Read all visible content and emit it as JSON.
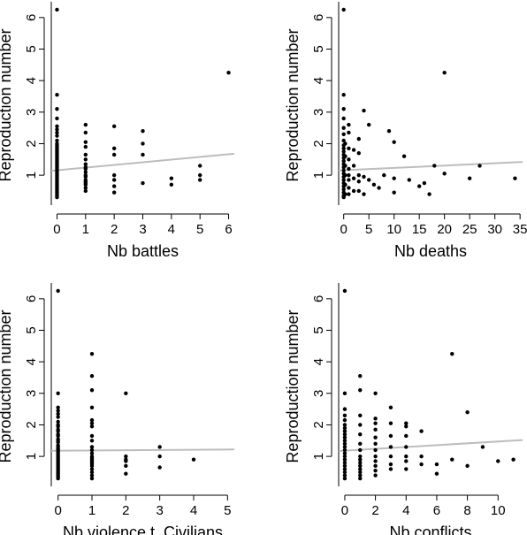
{
  "chart_data": [
    {
      "type": "scatter",
      "xlabel": "Nb battles",
      "ylabel": "Reproduction number",
      "xlim": [
        -0.2,
        6.2
      ],
      "ylim": [
        0.05,
        6.5
      ],
      "xticks": [
        0,
        1,
        2,
        3,
        4,
        5,
        6
      ],
      "yticks": [
        1,
        2,
        3,
        4,
        5,
        6
      ],
      "trend": {
        "x0": -0.2,
        "y0": 1.14,
        "x1": 6.2,
        "y1": 1.68
      },
      "points": [
        [
          0,
          6.25
        ],
        [
          0,
          3.55
        ],
        [
          0,
          3.1
        ],
        [
          0,
          2.8
        ],
        [
          0,
          2.55
        ],
        [
          0,
          2.45
        ],
        [
          0,
          2.35
        ],
        [
          0,
          2.25
        ],
        [
          0,
          2.1
        ],
        [
          0,
          2.0
        ],
        [
          0,
          1.95
        ],
        [
          0,
          1.9
        ],
        [
          0,
          1.85
        ],
        [
          0,
          1.8
        ],
        [
          0,
          1.75
        ],
        [
          0,
          1.7
        ],
        [
          0,
          1.65
        ],
        [
          0,
          1.6
        ],
        [
          0,
          1.55
        ],
        [
          0,
          1.5
        ],
        [
          0,
          1.45
        ],
        [
          0,
          1.4
        ],
        [
          0,
          1.35
        ],
        [
          0,
          1.3
        ],
        [
          0,
          1.25
        ],
        [
          0,
          1.2
        ],
        [
          0,
          1.15
        ],
        [
          0,
          1.1
        ],
        [
          0,
          1.05
        ],
        [
          0,
          1.0
        ],
        [
          0,
          0.95
        ],
        [
          0,
          0.9
        ],
        [
          0,
          0.85
        ],
        [
          0,
          0.8
        ],
        [
          0,
          0.75
        ],
        [
          0,
          0.7
        ],
        [
          0,
          0.65
        ],
        [
          0,
          0.6
        ],
        [
          0,
          0.55
        ],
        [
          0,
          0.5
        ],
        [
          0,
          0.45
        ],
        [
          0,
          0.4
        ],
        [
          0,
          0.35
        ],
        [
          0,
          0.3
        ],
        [
          1,
          2.6
        ],
        [
          1,
          2.35
        ],
        [
          1,
          2.05
        ],
        [
          1,
          1.9
        ],
        [
          1,
          1.65
        ],
        [
          1,
          1.5
        ],
        [
          1,
          1.35
        ],
        [
          1,
          1.25
        ],
        [
          1,
          1.2
        ],
        [
          1,
          1.1
        ],
        [
          1,
          1.0
        ],
        [
          1,
          0.95
        ],
        [
          1,
          0.85
        ],
        [
          1,
          0.8
        ],
        [
          1,
          0.75
        ],
        [
          1,
          0.7
        ],
        [
          1,
          0.6
        ],
        [
          1,
          0.5
        ],
        [
          2,
          2.55
        ],
        [
          2,
          1.85
        ],
        [
          2,
          1.65
        ],
        [
          2,
          1.0
        ],
        [
          2,
          0.85
        ],
        [
          2,
          0.65
        ],
        [
          2,
          0.45
        ],
        [
          3,
          2.4
        ],
        [
          3,
          2.0
        ],
        [
          3,
          1.65
        ],
        [
          3,
          0.75
        ],
        [
          4,
          0.9
        ],
        [
          4,
          0.7
        ],
        [
          5,
          1.3
        ],
        [
          5,
          1.0
        ],
        [
          5,
          0.85
        ],
        [
          6,
          4.25
        ]
      ]
    },
    {
      "type": "scatter",
      "xlabel": "Nb deaths",
      "ylabel": "Reproduction number",
      "xlim": [
        -1,
        35.5
      ],
      "ylim": [
        0.05,
        6.5
      ],
      "xticks": [
        0,
        5,
        10,
        15,
        20,
        25,
        30,
        35
      ],
      "yticks": [
        1,
        2,
        3,
        4,
        5,
        6
      ],
      "trend": {
        "x0": -1,
        "y0": 1.15,
        "x1": 35.5,
        "y1": 1.42
      },
      "points": [
        [
          0,
          6.25
        ],
        [
          0,
          3.55
        ],
        [
          0,
          3.1
        ],
        [
          0,
          2.8
        ],
        [
          0,
          2.5
        ],
        [
          0,
          2.3
        ],
        [
          0,
          2.1
        ],
        [
          0,
          1.95
        ],
        [
          0,
          1.85
        ],
        [
          0,
          1.75
        ],
        [
          0,
          1.65
        ],
        [
          0,
          1.55
        ],
        [
          0,
          1.45
        ],
        [
          0,
          1.35
        ],
        [
          0,
          1.25
        ],
        [
          0,
          1.15
        ],
        [
          0,
          1.05
        ],
        [
          0,
          0.95
        ],
        [
          0,
          0.85
        ],
        [
          0,
          0.75
        ],
        [
          0,
          0.65
        ],
        [
          0,
          0.55
        ],
        [
          0,
          0.45
        ],
        [
          0,
          0.35
        ],
        [
          0,
          0.3
        ],
        [
          0.3,
          2.0
        ],
        [
          0.3,
          1.6
        ],
        [
          0.3,
          1.3
        ],
        [
          0.3,
          1.0
        ],
        [
          0.3,
          0.7
        ],
        [
          0.3,
          0.4
        ],
        [
          1,
          2.6
        ],
        [
          1,
          2.35
        ],
        [
          1,
          1.85
        ],
        [
          1,
          1.5
        ],
        [
          1,
          1.2
        ],
        [
          1,
          1.0
        ],
        [
          1,
          0.85
        ],
        [
          1,
          0.6
        ],
        [
          1,
          0.4
        ],
        [
          2,
          1.8
        ],
        [
          2,
          1.3
        ],
        [
          2,
          0.9
        ],
        [
          2,
          0.5
        ],
        [
          3,
          2.15
        ],
        [
          3,
          1.7
        ],
        [
          3,
          1.0
        ],
        [
          3,
          0.8
        ],
        [
          3,
          0.5
        ],
        [
          4,
          3.05
        ],
        [
          4,
          0.95
        ],
        [
          4,
          0.4
        ],
        [
          5,
          2.6
        ],
        [
          5,
          0.85
        ],
        [
          6,
          0.7
        ],
        [
          7,
          0.6
        ],
        [
          8,
          1.0
        ],
        [
          9,
          2.4
        ],
        [
          10,
          2.05
        ],
        [
          10,
          0.9
        ],
        [
          10,
          0.45
        ],
        [
          12,
          1.6
        ],
        [
          13,
          0.85
        ],
        [
          15,
          0.65
        ],
        [
          16,
          0.75
        ],
        [
          17,
          0.4
        ],
        [
          18,
          1.3
        ],
        [
          20,
          4.25
        ],
        [
          20,
          1.05
        ],
        [
          25,
          0.9
        ],
        [
          27,
          1.3
        ],
        [
          34,
          0.9
        ]
      ]
    },
    {
      "type": "scatter",
      "xlabel": "Nb violence t. Civilians",
      "ylabel": "Reproduction number",
      "xlim": [
        -0.2,
        5.2
      ],
      "ylim": [
        0.05,
        6.5
      ],
      "xticks": [
        0,
        1,
        2,
        3,
        4,
        5
      ],
      "yticks": [
        1,
        2,
        3,
        4,
        5,
        6
      ],
      "trend": {
        "x0": -0.2,
        "y0": 1.18,
        "x1": 5.2,
        "y1": 1.22
      },
      "points": [
        [
          0,
          6.25
        ],
        [
          0,
          3.0
        ],
        [
          0,
          2.55
        ],
        [
          0,
          2.45
        ],
        [
          0,
          2.35
        ],
        [
          0,
          2.25
        ],
        [
          0,
          2.1
        ],
        [
          0,
          2.0
        ],
        [
          0,
          1.95
        ],
        [
          0,
          1.85
        ],
        [
          0,
          1.8
        ],
        [
          0,
          1.7
        ],
        [
          0,
          1.65
        ],
        [
          0,
          1.55
        ],
        [
          0,
          1.5
        ],
        [
          0,
          1.45
        ],
        [
          0,
          1.35
        ],
        [
          0,
          1.3
        ],
        [
          0,
          1.25
        ],
        [
          0,
          1.2
        ],
        [
          0,
          1.15
        ],
        [
          0,
          1.1
        ],
        [
          0,
          1.05
        ],
        [
          0,
          1.0
        ],
        [
          0,
          0.95
        ],
        [
          0,
          0.9
        ],
        [
          0,
          0.85
        ],
        [
          0,
          0.8
        ],
        [
          0,
          0.75
        ],
        [
          0,
          0.7
        ],
        [
          0,
          0.65
        ],
        [
          0,
          0.6
        ],
        [
          0,
          0.55
        ],
        [
          0,
          0.5
        ],
        [
          0,
          0.45
        ],
        [
          0,
          0.4
        ],
        [
          0,
          0.35
        ],
        [
          0,
          0.3
        ],
        [
          1,
          4.25
        ],
        [
          1,
          3.55
        ],
        [
          1,
          3.1
        ],
        [
          1,
          2.55
        ],
        [
          1,
          2.15
        ],
        [
          1,
          2.05
        ],
        [
          1,
          1.95
        ],
        [
          1,
          1.65
        ],
        [
          1,
          1.5
        ],
        [
          1,
          1.3
        ],
        [
          1,
          1.2
        ],
        [
          1,
          1.1
        ],
        [
          1,
          1.0
        ],
        [
          1,
          0.95
        ],
        [
          1,
          0.9
        ],
        [
          1,
          0.85
        ],
        [
          1,
          0.8
        ],
        [
          1,
          0.75
        ],
        [
          1,
          0.7
        ],
        [
          1,
          0.6
        ],
        [
          1,
          0.5
        ],
        [
          1,
          0.4
        ],
        [
          1,
          0.3
        ],
        [
          2,
          3.0
        ],
        [
          2,
          1.0
        ],
        [
          2,
          0.9
        ],
        [
          2,
          0.85
        ],
        [
          2,
          0.7
        ],
        [
          2,
          0.45
        ],
        [
          3,
          1.3
        ],
        [
          3,
          1.0
        ],
        [
          3,
          0.65
        ],
        [
          4,
          0.9
        ]
      ]
    },
    {
      "type": "scatter",
      "xlabel": "Nb conflicts",
      "ylabel": "Reproduction number",
      "xlim": [
        -0.4,
        11.6
      ],
      "ylim": [
        0.05,
        6.5
      ],
      "xticks": [
        0,
        2,
        4,
        6,
        8,
        10
      ],
      "yticks": [
        1,
        2,
        3,
        4,
        5,
        6
      ],
      "trend": {
        "x0": -0.4,
        "y0": 1.17,
        "x1": 11.6,
        "y1": 1.52
      },
      "points": [
        [
          0,
          6.25
        ],
        [
          0,
          3.0
        ],
        [
          0,
          2.5
        ],
        [
          0,
          2.3
        ],
        [
          0,
          2.15
        ],
        [
          0,
          2.0
        ],
        [
          0,
          1.9
        ],
        [
          0,
          1.8
        ],
        [
          0,
          1.7
        ],
        [
          0,
          1.6
        ],
        [
          0,
          1.5
        ],
        [
          0,
          1.4
        ],
        [
          0,
          1.3
        ],
        [
          0,
          1.2
        ],
        [
          0,
          1.1
        ],
        [
          0,
          1.0
        ],
        [
          0,
          0.9
        ],
        [
          0,
          0.8
        ],
        [
          0,
          0.7
        ],
        [
          0,
          0.6
        ],
        [
          0,
          0.5
        ],
        [
          0,
          0.4
        ],
        [
          0,
          0.3
        ],
        [
          1,
          3.55
        ],
        [
          1,
          3.1
        ],
        [
          1,
          2.3
        ],
        [
          1,
          2.0
        ],
        [
          1,
          1.7
        ],
        [
          1,
          1.4
        ],
        [
          1,
          1.2
        ],
        [
          1,
          1.0
        ],
        [
          1,
          0.9
        ],
        [
          1,
          0.8
        ],
        [
          1,
          0.7
        ],
        [
          1,
          0.6
        ],
        [
          1,
          0.5
        ],
        [
          1,
          0.4
        ],
        [
          1,
          0.3
        ],
        [
          2,
          3.0
        ],
        [
          2,
          2.2
        ],
        [
          2,
          2.05
        ],
        [
          2,
          1.85
        ],
        [
          2,
          1.6
        ],
        [
          2,
          1.4
        ],
        [
          2,
          1.2
        ],
        [
          2,
          1.0
        ],
        [
          2,
          0.85
        ],
        [
          2,
          0.7
        ],
        [
          2,
          0.55
        ],
        [
          2,
          0.4
        ],
        [
          3,
          2.55
        ],
        [
          3,
          2.05
        ],
        [
          3,
          1.65
        ],
        [
          3,
          1.3
        ],
        [
          3,
          1.0
        ],
        [
          3,
          0.75
        ],
        [
          3,
          0.6
        ],
        [
          4,
          2.05
        ],
        [
          4,
          1.95
        ],
        [
          4,
          1.65
        ],
        [
          4,
          1.3
        ],
        [
          4,
          1.0
        ],
        [
          4,
          0.85
        ],
        [
          4,
          0.6
        ],
        [
          5,
          1.8
        ],
        [
          5,
          1.0
        ],
        [
          5,
          0.75
        ],
        [
          6,
          0.75
        ],
        [
          6,
          0.45
        ],
        [
          7,
          4.25
        ],
        [
          7,
          0.9
        ],
        [
          8,
          2.4
        ],
        [
          8,
          0.7
        ],
        [
          9,
          1.3
        ],
        [
          10,
          0.85
        ],
        [
          11,
          0.9
        ]
      ]
    }
  ]
}
